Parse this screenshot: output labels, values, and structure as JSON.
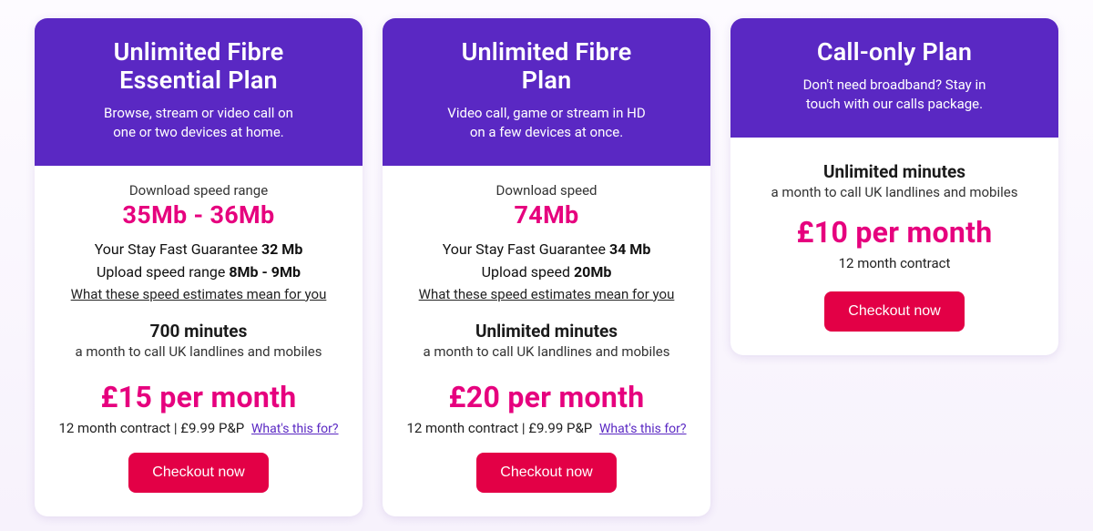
{
  "colors": {
    "header_bg": "#5a28c3",
    "accent_pink": "#e6007e",
    "button_bg": "#e30046",
    "card_bg": "#ffffff",
    "page_bg_top": "#fdfbff",
    "page_bg_bottom": "#f7f2fc"
  },
  "plans": [
    {
      "title_line1": "Unlimited Fibre",
      "title_line2": "Essential Plan",
      "tagline_line1": "Browse, stream or video call on",
      "tagline_line2": "one or two devices at home.",
      "speed_label": "Download speed range",
      "speed_value": "35Mb - 36Mb",
      "guarantee_prefix": "Your Stay Fast Guarantee ",
      "guarantee_value": "32 Mb",
      "upload_prefix": "Upload speed range ",
      "upload_value": "8Mb - 9Mb",
      "speed_link": "What these speed estimates mean for you",
      "minutes_title": "700 minutes",
      "minutes_sub": "a month to call UK landlines and mobiles",
      "price": "£15 per month",
      "contract": "12 month contract | £9.99 P&P",
      "whats_this": "What's this for?",
      "checkout": "Checkout now"
    },
    {
      "title_line1": "Unlimited Fibre",
      "title_line2": "Plan",
      "tagline_line1": "Video call, game or stream in HD",
      "tagline_line2": "on a few devices at once.",
      "speed_label": "Download speed",
      "speed_value": "74Mb",
      "guarantee_prefix": "Your Stay Fast Guarantee ",
      "guarantee_value": "34 Mb",
      "upload_prefix": "Upload speed ",
      "upload_value": "20Mb",
      "speed_link": "What these speed estimates mean for you",
      "minutes_title": "Unlimited minutes",
      "minutes_sub": "a month to call UK landlines and mobiles",
      "price": "£20 per month",
      "contract": "12 month contract | £9.99 P&P",
      "whats_this": "What's this for?",
      "checkout": "Checkout now"
    },
    {
      "title_line1": "Call-only Plan",
      "tagline_line1": "Don't need broadband? Stay in",
      "tagline_line2": "touch with our calls package.",
      "minutes_title": "Unlimited minutes",
      "minutes_sub": "a month to call UK landlines and mobiles",
      "price": "£10 per month",
      "contract": "12 month contract",
      "checkout": "Checkout now"
    }
  ]
}
